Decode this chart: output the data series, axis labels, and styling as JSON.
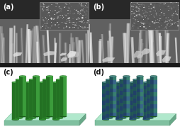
{
  "panel_labels": [
    "(a)",
    "(b)",
    "(c)",
    "(d)"
  ],
  "base_top_color": "#b8ecd8",
  "base_front_color": "#8ccfb0",
  "base_bottom_color": "#6ab898",
  "rod_green_main": "#2d8a2d",
  "rod_green_light": "#52b852",
  "rod_green_dark": "#1a5a1a",
  "rod_blue_main": "#3a5090",
  "rod_blue_light": "#5a80c0",
  "rod_blue_dark": "#1a2a60",
  "rod_stripe_green": "#2a7a5a",
  "rod_stripe_blue": "#2a4a88",
  "bg_sem": "#c0c0c0",
  "sem_dark": "#303030",
  "sem_mid": "#686868",
  "sem_light": "#a0a0a0",
  "inset_bg": "#707070"
}
